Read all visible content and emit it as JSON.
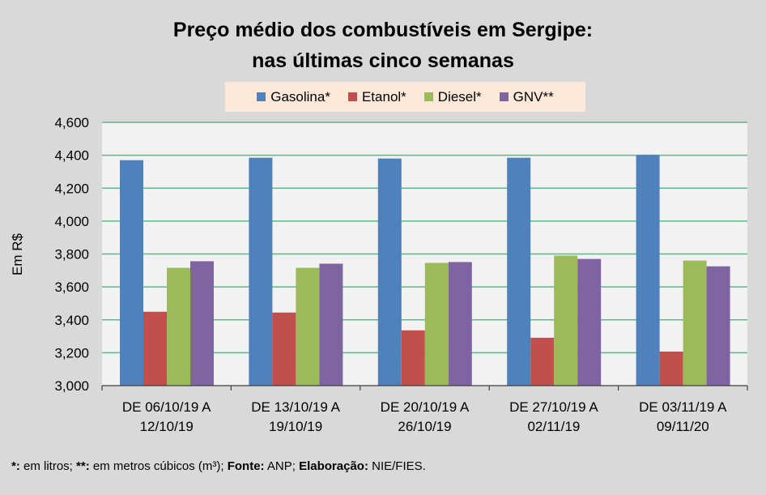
{
  "chart_data": {
    "type": "bar",
    "title": "Preço médio dos combustíveis em Sergipe:",
    "subtitle": "nas últimas cinco semanas",
    "xlabel": "",
    "ylabel": "Em R$",
    "ylim": [
      3000,
      4600
    ],
    "yticks": [
      3000,
      3200,
      3400,
      3600,
      3800,
      4000,
      4200,
      4400,
      4600
    ],
    "ytick_labels": [
      "3,000",
      "3,200",
      "3,400",
      "3,600",
      "3,800",
      "4,000",
      "4,200",
      "4,400",
      "4,600"
    ],
    "grid": true,
    "legend_position": "top-center",
    "categories": [
      [
        "DE 06/10/19 A",
        "12/10/19"
      ],
      [
        "DE 13/10/19 A",
        "19/10/19"
      ],
      [
        "DE 20/10/19 A",
        "26/10/19"
      ],
      [
        "DE 27/10/19 A",
        "02/11/19"
      ],
      [
        "DE 03/11/19 A",
        "09/11/20"
      ]
    ],
    "series": [
      {
        "name": "Gasolina*",
        "color": "#4f81bd",
        "values": [
          4370,
          4385,
          4380,
          4385,
          4402
        ]
      },
      {
        "name": "Etanol*",
        "color": "#c0504d",
        "values": [
          3449,
          3444,
          3336,
          3291,
          3207
        ]
      },
      {
        "name": "Diesel*",
        "color": "#9bbb59",
        "values": [
          3716,
          3716,
          3746,
          3790,
          3760
        ]
      },
      {
        "name": "GNV**",
        "color": "#8064a2",
        "values": [
          3756,
          3741,
          3751,
          3770,
          3725
        ]
      }
    ]
  },
  "footer": {
    "p1_bold": "*:",
    "p1": " em litros; ",
    "p2_bold": "**:",
    "p2": " em metros cúbicos (m³); ",
    "p3_bold": "Fonte:",
    "p3": " ANP; ",
    "p4_bold": "Elaboração:",
    "p4": " NIE/FIES."
  },
  "colors": {
    "background": "#d9d9d9",
    "plot_background": "#f2f2f2",
    "gridline": "#5cb88a",
    "legend_background": "#fde9d9"
  }
}
